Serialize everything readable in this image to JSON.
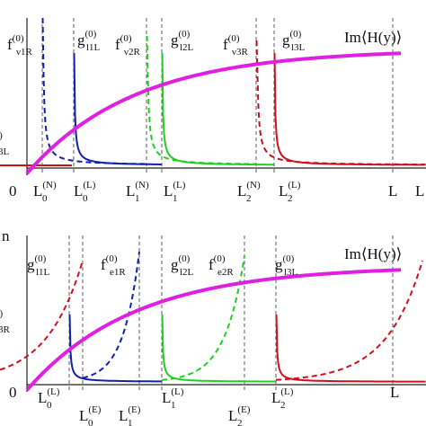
{
  "top_panel": {
    "curve_labels": [
      {
        "base": "f",
        "sup": "(0)",
        "sub": "ν1R"
      },
      {
        "base": "g",
        "sup": "(0)",
        "sub": "l1L"
      },
      {
        "base": "f",
        "sup": "(0)",
        "sub": "ν2R"
      },
      {
        "base": "g",
        "sup": "(0)",
        "sub": "l2L"
      },
      {
        "base": "f",
        "sup": "(0)",
        "sub": "ν3R"
      },
      {
        "base": "g",
        "sup": "(0)",
        "sub": "l3L"
      }
    ],
    "function_label": "Im⟨H(y)⟩",
    "axis_labels": [
      {
        "base": "0"
      },
      {
        "base": "L",
        "sup": "(N)",
        "sub": "0"
      },
      {
        "base": "L",
        "sup": "(L)",
        "sub": "0"
      },
      {
        "base": "L",
        "sup": "(N)",
        "sub": "1"
      },
      {
        "base": "L",
        "sup": "(L)",
        "sub": "1"
      },
      {
        "base": "L",
        "sup": "(N)",
        "sub": "2"
      },
      {
        "base": "L",
        "sup": "(L)",
        "sub": "2"
      },
      {
        "base": "L"
      }
    ],
    "edge_fragments": [
      "(0)",
      "3L",
      "L"
    ]
  },
  "bottom_panel": {
    "curve_labels": [
      {
        "base": "g",
        "sup": "(0)",
        "sub": "l1L"
      },
      {
        "base": "f",
        "sup": "(0)",
        "sub": "e1R"
      },
      {
        "base": "g",
        "sup": "(0)",
        "sub": "l2L"
      },
      {
        "base": "f",
        "sup": "(0)",
        "sub": "e2R"
      },
      {
        "base": "g",
        "sup": "(0)",
        "sub": "l3L"
      }
    ],
    "function_label": "Im⟨H(y)⟩",
    "axis_labels": [
      {
        "base": "0"
      },
      {
        "base": "L",
        "sup": "(L)",
        "sub": "0"
      },
      {
        "base": "L",
        "sup": "(E)",
        "sub": "0"
      },
      {
        "base": "L",
        "sup": "(E)",
        "sub": "1"
      },
      {
        "base": "L",
        "sup": "(L)",
        "sub": "1"
      },
      {
        "base": "L",
        "sup": "(E)",
        "sub": "2"
      },
      {
        "base": "L",
        "sup": "(L)",
        "sub": "2"
      },
      {
        "base": "L"
      }
    ],
    "edge_fragments": [
      "n",
      "0)",
      "3R"
    ]
  }
}
